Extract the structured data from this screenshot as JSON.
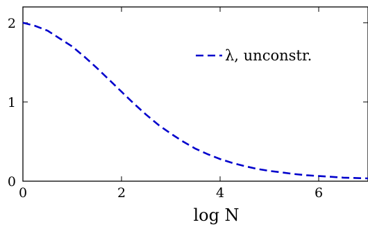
{
  "chart_data": {
    "type": "line",
    "xlabel": "log N",
    "ylabel": "",
    "xlim": [
      0,
      7
    ],
    "ylim": [
      0,
      2.2
    ],
    "xticks": [
      "0",
      "2",
      "4",
      "6"
    ],
    "yticks": [
      "0",
      "1",
      "2"
    ],
    "grid": false,
    "legend_position": "top-right",
    "series": [
      {
        "name": "λ, unconstr.",
        "color": "#0000cc",
        "style": "dashed",
        "x": [
          0,
          0.25,
          0.5,
          0.75,
          1.0,
          1.25,
          1.5,
          1.75,
          2.0,
          2.25,
          2.5,
          2.75,
          3.0,
          3.25,
          3.5,
          3.75,
          4.0,
          4.25,
          4.5,
          4.75,
          5.0,
          5.25,
          5.5,
          5.75,
          6.0,
          6.25,
          6.5,
          6.75,
          7.0
        ],
        "y": [
          2.0,
          1.96,
          1.9,
          1.8,
          1.7,
          1.57,
          1.43,
          1.28,
          1.13,
          0.98,
          0.84,
          0.71,
          0.6,
          0.5,
          0.41,
          0.34,
          0.28,
          0.23,
          0.19,
          0.155,
          0.13,
          0.11,
          0.09,
          0.075,
          0.065,
          0.055,
          0.045,
          0.04,
          0.035
        ]
      }
    ]
  }
}
